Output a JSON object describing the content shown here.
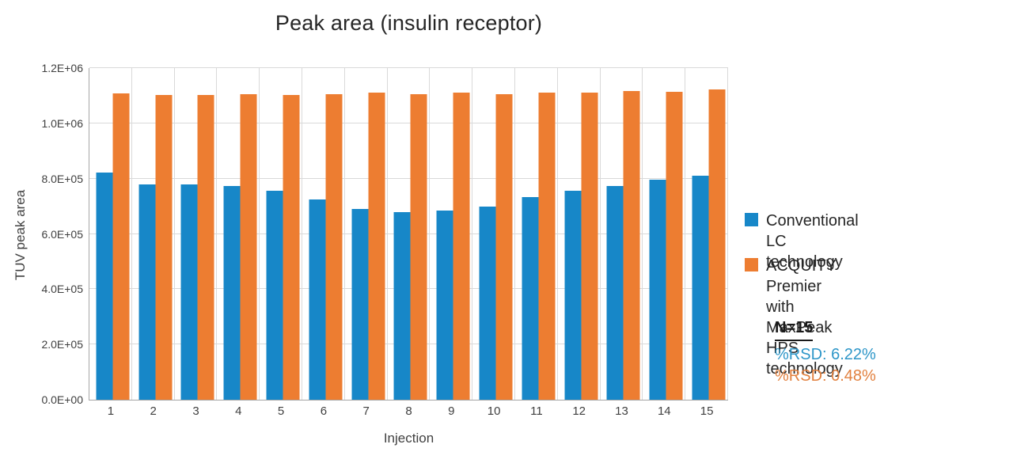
{
  "title": "Peak area (insulin receptor)",
  "chart_data": {
    "type": "bar",
    "title": "Peak area (insulin receptor)",
    "xlabel": "Injection",
    "ylabel": "TUV peak area",
    "categories": [
      "1",
      "2",
      "3",
      "4",
      "5",
      "6",
      "7",
      "8",
      "9",
      "10",
      "11",
      "12",
      "13",
      "14",
      "15"
    ],
    "series": [
      {
        "name": "Conventional LC technology",
        "color": "#1787c8",
        "values": [
          822000,
          778000,
          778000,
          772000,
          757000,
          724000,
          690000,
          678000,
          684000,
          699000,
          733000,
          757000,
          773000,
          797000,
          811000
        ]
      },
      {
        "name": "ACQUITY Premier with MaxPeak HPS technology",
        "color": "#ed7d31",
        "values": [
          1107000,
          1103000,
          1103000,
          1106000,
          1103000,
          1106000,
          1112000,
          1106000,
          1111000,
          1105000,
          1110000,
          1110000,
          1117000,
          1115000,
          1122000
        ]
      }
    ],
    "ylim": [
      0,
      1200000
    ],
    "ytick_labels": [
      "0.0E+00",
      "2.0E+05",
      "4.0E+05",
      "6.0E+05",
      "8.0E+05",
      "1.0E+06",
      "1.2E+06"
    ],
    "grid": true,
    "legend_position": "right"
  },
  "legend": {
    "items": [
      {
        "label": "Conventional LC technology",
        "color": "#1787c8"
      },
      {
        "label": "ACQUITY Premier with MaxPeak HPS technology",
        "color": "#ed7d31"
      }
    ]
  },
  "stats": {
    "n_label": "N=15",
    "rsd_conventional": "%RSD: 6.22%",
    "rsd_conventional_color": "#2d96c8",
    "rsd_premier": "%RSD: 0.48%",
    "rsd_premier_color": "#e2813f"
  }
}
